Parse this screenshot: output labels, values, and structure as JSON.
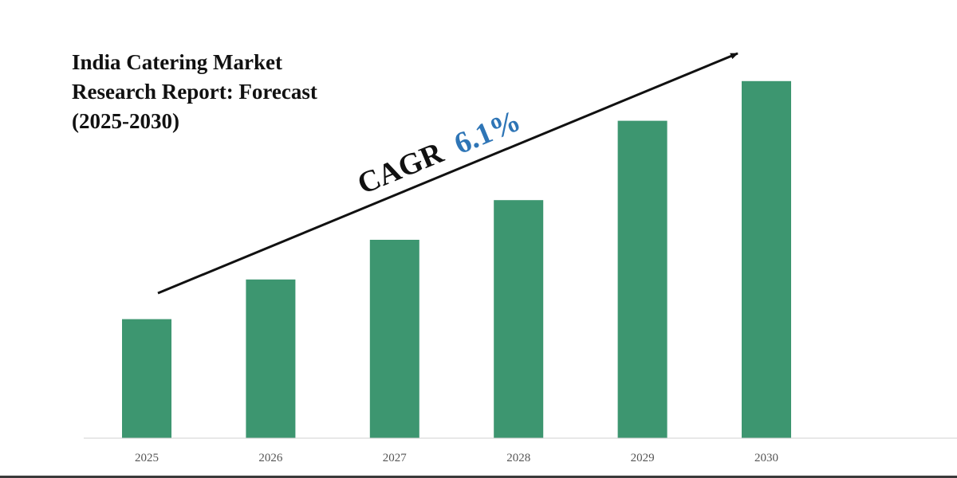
{
  "chart_data": {
    "type": "bar",
    "title_lines": [
      "India Catering Market",
      "Research Report: Forecast",
      "(2025-2030)"
    ],
    "categories": [
      "2025",
      "2026",
      "2027",
      "2028",
      "2029",
      "2030"
    ],
    "values": [
      30,
      40,
      50,
      60,
      80,
      90
    ],
    "ylim": [
      0,
      100
    ],
    "xlabel": "",
    "ylabel": "",
    "grid": false,
    "legend": "none",
    "bar_color": "#3d9670",
    "axis_color": "#d0d0d0",
    "tick_label_color": "#555555",
    "annotation": {
      "prefix": "CAGR",
      "value": "6.1%",
      "prefix_color": "#111111",
      "value_color": "#2e75b6",
      "arrow_color": "#111111"
    }
  }
}
